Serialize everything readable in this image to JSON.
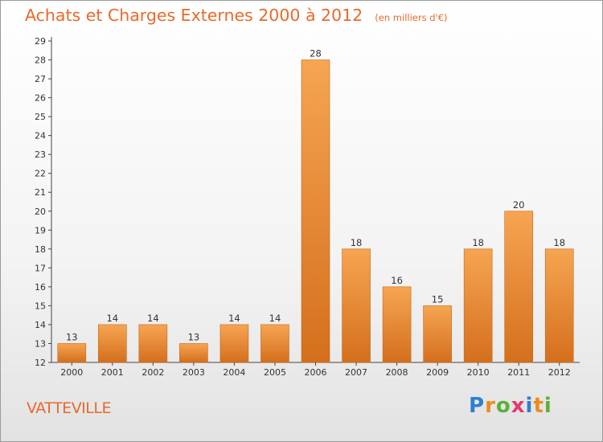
{
  "chart_data": {
    "type": "bar",
    "title": "Achats et Charges Externes 2000 à 2012",
    "subtitle": "(en milliers d'€)",
    "categories": [
      "2000",
      "2001",
      "2002",
      "2003",
      "2004",
      "2005",
      "2006",
      "2007",
      "2008",
      "2009",
      "2010",
      "2011",
      "2012"
    ],
    "values": [
      13,
      14,
      14,
      13,
      14,
      14,
      28,
      18,
      16,
      15,
      18,
      20,
      18
    ],
    "ylim": [
      12,
      29
    ],
    "yticks": [
      12,
      13,
      14,
      15,
      16,
      17,
      18,
      19,
      20,
      21,
      22,
      23,
      24,
      25,
      26,
      27,
      28,
      29
    ],
    "xlabel": "",
    "ylabel": "",
    "grid": false,
    "bar_color_top": "#f6a552",
    "bar_color_bottom": "#d46f1c",
    "label_color": "#333333"
  },
  "commune": "VATTEVILLE",
  "logo": {
    "text": "Proxiti",
    "letters": [
      {
        "char": "P",
        "color": "#2f7fd1"
      },
      {
        "char": "r",
        "color": "#f08a1c"
      },
      {
        "char": "o",
        "color": "#5ab03a"
      },
      {
        "char": "x",
        "color": "#e23a6b"
      },
      {
        "char": "i",
        "color": "#2f7fd1"
      },
      {
        "char": "t",
        "color": "#f08a1c"
      },
      {
        "char": "i",
        "color": "#5ab03a"
      }
    ]
  }
}
